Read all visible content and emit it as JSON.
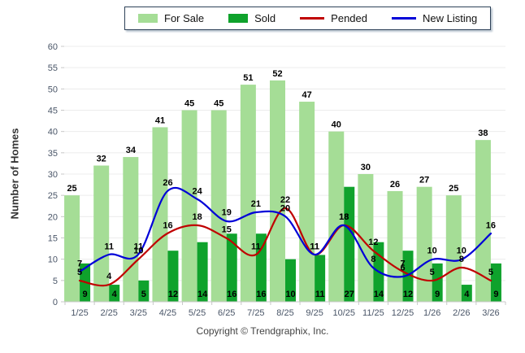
{
  "chart_data": {
    "type": "bar",
    "subtype": "grouped-bars-with-smooth-lines",
    "title": "",
    "xlabel": "",
    "ylabel": "Number of Homes",
    "ylim": [
      0,
      60
    ],
    "ytick_step": 5,
    "grid": true,
    "legend_position": "top-center",
    "categories": [
      "1/25",
      "2/25",
      "3/25",
      "4/25",
      "5/25",
      "6/25",
      "7/25",
      "8/25",
      "9/25",
      "10/25",
      "11/25",
      "12/25",
      "1/26",
      "2/26",
      "3/26"
    ],
    "series": [
      {
        "name": "For Sale",
        "type": "bar",
        "color": "#A5DD96",
        "values": [
          25,
          32,
          34,
          41,
          45,
          45,
          51,
          52,
          47,
          40,
          30,
          26,
          27,
          25,
          38
        ]
      },
      {
        "name": "Sold",
        "type": "bar",
        "color": "#0FA22C",
        "values": [
          9,
          4,
          5,
          12,
          14,
          16,
          16,
          10,
          11,
          27,
          14,
          12,
          9,
          4,
          9
        ]
      },
      {
        "name": "Pended",
        "type": "line",
        "color": "#C00000",
        "values": [
          5,
          4,
          10,
          16,
          18,
          15,
          11,
          22,
          11,
          18,
          12,
          7,
          5,
          8,
          5
        ]
      },
      {
        "name": "New Listing",
        "type": "line",
        "color": "#0000D8",
        "values": [
          7,
          11,
          11,
          26,
          24,
          19,
          21,
          20,
          11,
          18,
          8,
          6,
          10,
          10,
          16
        ]
      }
    ],
    "colors": {
      "gridline": "#ececec",
      "axis_line": "#c8c8c8",
      "tick_label": "#4a5668",
      "value_label": "#000000"
    }
  },
  "footer": {
    "copyright": "Copyright © Trendgraphix, Inc."
  }
}
